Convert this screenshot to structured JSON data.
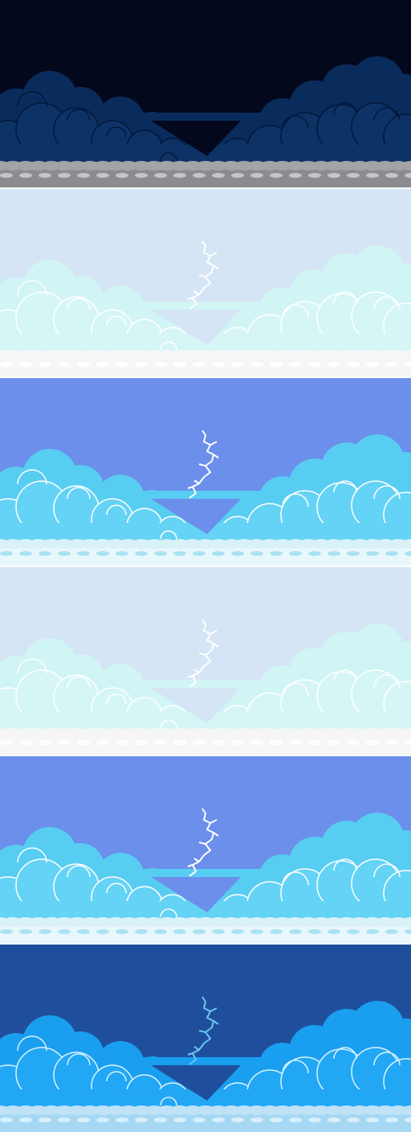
{
  "sprite_sheet": {
    "panels": [
      {
        "id": "storm-night",
        "sky": "#03081c",
        "cloud_back": "#0a2c5c",
        "cloud_front": "#0d3366",
        "cloud_edge": "#02183a",
        "ground_top": "#a3a3a8",
        "ground": "#8c8c90",
        "ground_dot": "#c6c6ca",
        "lightning": false,
        "lightning_color": ""
      },
      {
        "id": "flash-pale",
        "sky": "#d5e5f6",
        "cloud_back": "#d1f4f4",
        "cloud_front": "#d6f6f6",
        "cloud_edge": "#ffffff",
        "ground_top": "#f6f6f6",
        "ground": "#f6f6f6",
        "ground_dot": "#ffffff",
        "lightning": true,
        "lightning_color": "#ffffff"
      },
      {
        "id": "day-blue",
        "sky": "#6b8fea",
        "cloud_back": "#58cdf2",
        "cloud_front": "#64d3f5",
        "cloud_edge": "#ffffff",
        "ground_top": "#d8f2f8",
        "ground": "#e8f7fb",
        "ground_dot": "#a9e3f2",
        "lightning": true,
        "lightning_color": "#ffffff"
      },
      {
        "id": "flash-pale-2",
        "sky": "#d5e5f6",
        "cloud_back": "#d1f4f4",
        "cloud_front": "#d6f6f6",
        "cloud_edge": "#ffffff",
        "ground_top": "#f6f6f6",
        "ground": "#f6f6f6",
        "ground_dot": "#ffffff",
        "lightning": true,
        "lightning_color": "#ffffff"
      },
      {
        "id": "day-blue-2",
        "sky": "#6b8fea",
        "cloud_back": "#58cdf2",
        "cloud_front": "#64d3f5",
        "cloud_edge": "#ffffff",
        "ground_top": "#d8f2f8",
        "ground": "#e8f7fb",
        "ground_dot": "#a9e3f2",
        "lightning": true,
        "lightning_color": "#ffffff"
      },
      {
        "id": "deep-blue",
        "sky": "#1f4f9c",
        "cloud_back": "#1a9ef0",
        "cloud_front": "#22a7f5",
        "cloud_edge": "#d8f3ff",
        "ground_top": "#bfe2f7",
        "ground": "#a6d8f3",
        "ground_dot": "#d9f0fb",
        "lightning": true,
        "lightning_color": "#6cc6ef"
      }
    ]
  }
}
